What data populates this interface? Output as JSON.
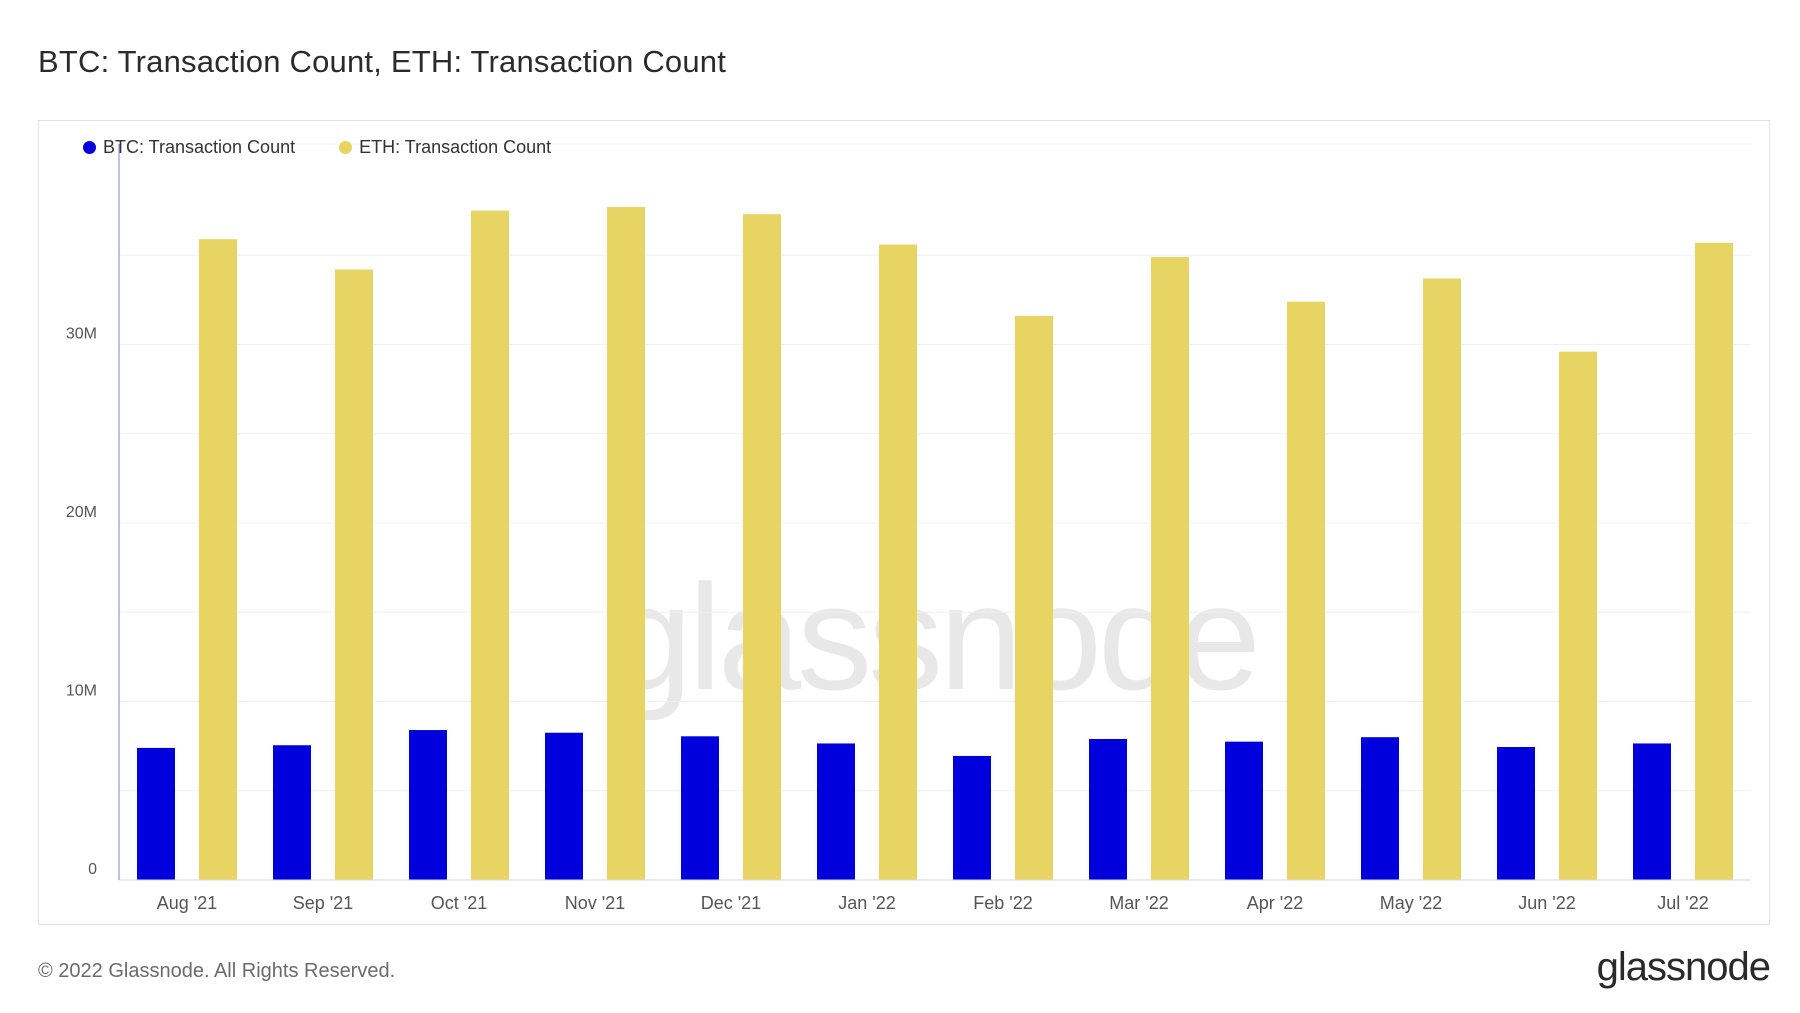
{
  "page": {
    "title": "BTC: Transaction Count, ETH: Transaction Count",
    "copyright": "© 2022 Glassnode. All Rights Reserved.",
    "logo_text": "glassnode",
    "watermark_text": "glassnode"
  },
  "colors": {
    "btc": "#0000dd",
    "eth": "#e8d462",
    "grid": "#f0f0f0",
    "axis_text": "#555555",
    "y_axis_line": "#8080e0"
  },
  "chart_data": {
    "type": "bar",
    "title": "BTC: Transaction Count, ETH: Transaction Count",
    "xlabel": "",
    "ylabel": "",
    "categories": [
      "Aug '21",
      "Sep '21",
      "Oct '21",
      "Nov '21",
      "Dec '21",
      "Jan '22",
      "Feb '22",
      "Mar '22",
      "Apr '22",
      "May '22",
      "Jun '22",
      "Jul '22"
    ],
    "series": [
      {
        "name": "BTC: Transaction Count",
        "color": "#0000dd",
        "values": [
          7400000,
          7550000,
          8400000,
          8250000,
          8050000,
          7650000,
          6950000,
          7900000,
          7750000,
          8000000,
          7450000,
          7650000
        ]
      },
      {
        "name": "ETH: Transaction Count",
        "color": "#e8d462",
        "values": [
          35900000,
          34200000,
          37500000,
          37700000,
          37300000,
          35600000,
          31600000,
          34900000,
          32400000,
          33700000,
          29600000,
          35700000
        ]
      }
    ],
    "ylim": [
      0,
      40000000
    ],
    "y_ticks": [
      {
        "value": 0,
        "label": "0"
      },
      {
        "value": 10000000,
        "label": "10M"
      },
      {
        "value": 20000000,
        "label": "20M"
      },
      {
        "value": 30000000,
        "label": "30M"
      }
    ],
    "grid": true,
    "legend_position": "top-left"
  }
}
